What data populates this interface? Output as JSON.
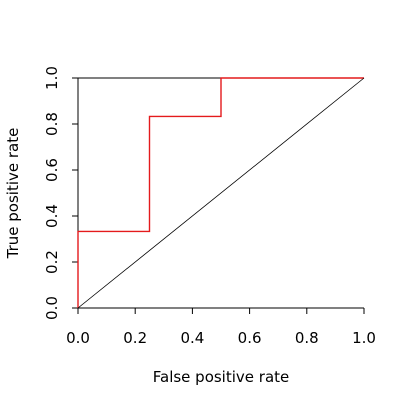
{
  "chart_data": {
    "type": "line",
    "title": "",
    "xlabel": "False positive rate",
    "ylabel": "True positive rate",
    "xlim": [
      0,
      1
    ],
    "ylim": [
      0,
      1
    ],
    "x_ticks": [
      0.0,
      0.2,
      0.4,
      0.6,
      0.8,
      1.0
    ],
    "y_ticks": [
      0.0,
      0.2,
      0.4,
      0.6,
      0.8,
      1.0
    ],
    "x_tick_labels": [
      "0.0",
      "0.2",
      "0.4",
      "0.6",
      "0.8",
      "1.0"
    ],
    "y_tick_labels": [
      "0.0",
      "0.2",
      "0.4",
      "0.6",
      "0.8",
      "1.0"
    ],
    "grid": false,
    "box": "left-bottom-top",
    "series": [
      {
        "color": "#e41a1c",
        "style": "step",
        "x": [
          0.0,
          0.0,
          0.25,
          0.25,
          0.5,
          0.5,
          1.0
        ],
        "y": [
          0.0,
          0.333,
          0.333,
          0.833,
          0.833,
          1.0,
          1.0
        ]
      },
      {
        "color": "#000000",
        "style": "diagonal-reference",
        "x": [
          0,
          1
        ],
        "y": [
          0,
          1
        ]
      }
    ]
  }
}
